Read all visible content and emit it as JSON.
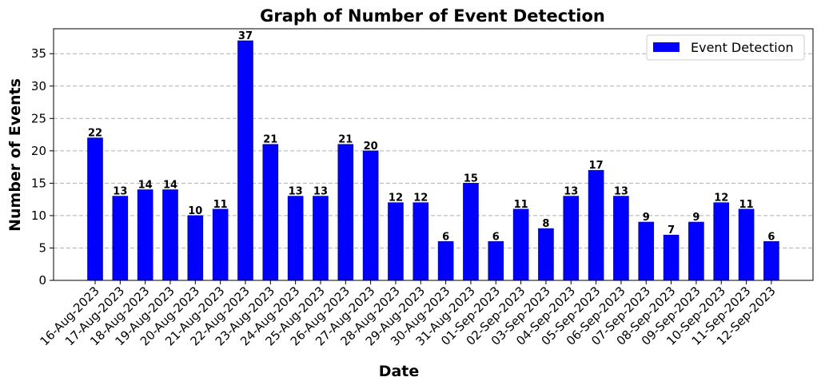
{
  "chart_data": {
    "type": "bar",
    "title": "Graph of Number of Event Detection",
    "xlabel": "Date",
    "ylabel": "Number of Events",
    "categories": [
      "16-Aug-2023",
      "17-Aug-2023",
      "18-Aug-2023",
      "19-Aug-2023",
      "20-Aug-2023",
      "21-Aug-2023",
      "22-Aug-2023",
      "23-Aug-2023",
      "24-Aug-2023",
      "25-Aug-2023",
      "26-Aug-2023",
      "27-Aug-2023",
      "28-Aug-2023",
      "29-Aug-2023",
      "30-Aug-2023",
      "31-Aug-2023",
      "01-Sep-2023",
      "02-Sep-2023",
      "03-Sep-2023",
      "04-Sep-2023",
      "05-Sep-2023",
      "06-Sep-2023",
      "07-Sep-2023",
      "08-Sep-2023",
      "09-Sep-2023",
      "10-Sep-2023",
      "11-Sep-2023",
      "12-Sep-2023"
    ],
    "series": [
      {
        "name": "Event Detection",
        "values": [
          22,
          13,
          14,
          14,
          10,
          11,
          37,
          21,
          13,
          13,
          21,
          20,
          12,
          12,
          6,
          15,
          6,
          11,
          8,
          13,
          17,
          13,
          9,
          7,
          9,
          12,
          11,
          6
        ],
        "color": "#0000ff"
      }
    ],
    "ylim": [
      0,
      38.85
    ],
    "yticks": [
      0,
      5,
      10,
      15,
      20,
      25,
      30,
      35
    ],
    "grid": "y-dashed",
    "legend": "top-right",
    "data_labels": true
  }
}
